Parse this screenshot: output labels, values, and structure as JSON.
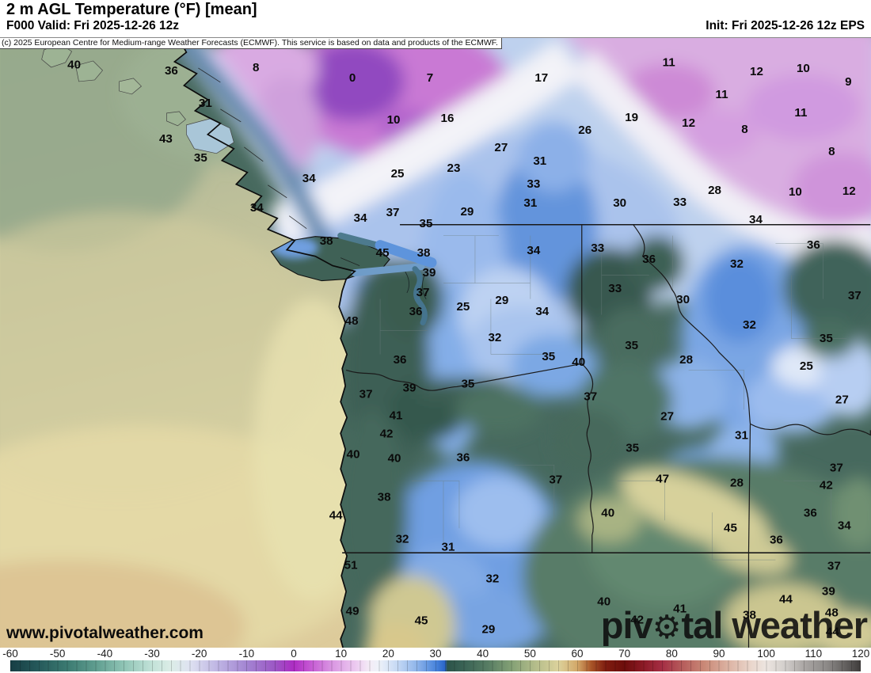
{
  "header": {
    "title": "2 m AGL Temperature (°F) [mean]",
    "valid": "F000 Valid: Fri 2025-12-26 12z",
    "init": "Init: Fri 2025-12-26 12z EPS"
  },
  "copyright": "(c) 2025 European Centre for Medium-range Weather Forecasts (ECMWF). This service is based on data and products of the ECMWF.",
  "watermark": "www.pivotalweather.com",
  "logo": {
    "pre": "piv",
    "gear_icon": "⚙",
    "post": "tal weather"
  },
  "colorbar": {
    "unit": "°F",
    "min": -60,
    "max": 120,
    "ticks": [
      -60,
      -50,
      -40,
      -30,
      -20,
      -10,
      0,
      10,
      20,
      30,
      40,
      50,
      60,
      70,
      80,
      90,
      100,
      110,
      120
    ],
    "stops": [
      {
        "v": -60,
        "c": "#173e44"
      },
      {
        "v": -54,
        "c": "#265a5b"
      },
      {
        "v": -48,
        "c": "#3b7a71"
      },
      {
        "v": -42,
        "c": "#5f9d8f"
      },
      {
        "v": -36,
        "c": "#8fc4b5"
      },
      {
        "v": -30,
        "c": "#c2e2d8"
      },
      {
        "v": -26,
        "c": "#dcede7"
      },
      {
        "v": -22,
        "c": "#dee2f1"
      },
      {
        "v": -16,
        "c": "#beb4e3"
      },
      {
        "v": -10,
        "c": "#a385d2"
      },
      {
        "v": -4,
        "c": "#9c57c5"
      },
      {
        "v": 0,
        "c": "#ad2cc3"
      },
      {
        "v": 3,
        "c": "#c252d1"
      },
      {
        "v": 8,
        "c": "#d995e2"
      },
      {
        "v": 13,
        "c": "#ecc9f0"
      },
      {
        "v": 16,
        "c": "#f4ecf6"
      },
      {
        "v": 18,
        "c": "#eef2f9"
      },
      {
        "v": 22,
        "c": "#c4d8f4"
      },
      {
        "v": 26,
        "c": "#8fb5ea"
      },
      {
        "v": 30,
        "c": "#4a85dc"
      },
      {
        "v": 32,
        "c": "#2a65c8"
      },
      {
        "v": 32.5,
        "c": "#2d544a"
      },
      {
        "v": 36,
        "c": "#3a6355"
      },
      {
        "v": 41,
        "c": "#567c63"
      },
      {
        "v": 46,
        "c": "#83a075"
      },
      {
        "v": 51,
        "c": "#b3bc8a"
      },
      {
        "v": 56,
        "c": "#dcd29c"
      },
      {
        "v": 60,
        "c": "#d3a869"
      },
      {
        "v": 63,
        "c": "#a85427"
      },
      {
        "v": 66,
        "c": "#7f1d10"
      },
      {
        "v": 70,
        "c": "#6d0d0b"
      },
      {
        "v": 74,
        "c": "#8c1a26"
      },
      {
        "v": 78,
        "c": "#a52e44"
      },
      {
        "v": 82,
        "c": "#b55a5a"
      },
      {
        "v": 87,
        "c": "#ca8a78"
      },
      {
        "v": 92,
        "c": "#dcb3a3"
      },
      {
        "v": 97,
        "c": "#ead7cd"
      },
      {
        "v": 100,
        "c": "#ece5e0"
      },
      {
        "v": 104,
        "c": "#d2cecb"
      },
      {
        "v": 108,
        "c": "#aaa6a4"
      },
      {
        "v": 113,
        "c": "#8b8886"
      },
      {
        "v": 118,
        "c": "#565352"
      },
      {
        "v": 120,
        "c": "#3e3b3a"
      }
    ]
  },
  "map": {
    "temperature_labels": [
      [
        40,
        93,
        80
      ],
      [
        36,
        216,
        88
      ],
      [
        8,
        323,
        84
      ],
      [
        31,
        259,
        129
      ],
      [
        43,
        209,
        174
      ],
      [
        35,
        253,
        198
      ],
      [
        34,
        324,
        261
      ],
      [
        0,
        445,
        97
      ],
      [
        7,
        543,
        97
      ],
      [
        17,
        684,
        97
      ],
      [
        10,
        497,
        150
      ],
      [
        16,
        565,
        148
      ],
      [
        26,
        739,
        163
      ],
      [
        27,
        633,
        185
      ],
      [
        31,
        682,
        202
      ],
      [
        33,
        674,
        231
      ],
      [
        31,
        670,
        255
      ],
      [
        34,
        390,
        224
      ],
      [
        25,
        502,
        218
      ],
      [
        23,
        573,
        211
      ],
      [
        29,
        590,
        266
      ],
      [
        34,
        455,
        274
      ],
      [
        37,
        496,
        267
      ],
      [
        35,
        538,
        281
      ],
      [
        11,
        845,
        77
      ],
      [
        12,
        956,
        89
      ],
      [
        10,
        1015,
        85
      ],
      [
        9,
        1072,
        102
      ],
      [
        11,
        912,
        118
      ],
      [
        11,
        1012,
        141
      ],
      [
        19,
        798,
        147
      ],
      [
        12,
        870,
        154
      ],
      [
        8,
        941,
        162
      ],
      [
        8,
        1051,
        190
      ],
      [
        28,
        903,
        239
      ],
      [
        30,
        783,
        255
      ],
      [
        33,
        859,
        254
      ],
      [
        10,
        1005,
        241
      ],
      [
        12,
        1073,
        240
      ],
      [
        34,
        955,
        276
      ],
      [
        38,
        412,
        303
      ],
      [
        45,
        483,
        318
      ],
      [
        38,
        535,
        318
      ],
      [
        34,
        674,
        315
      ],
      [
        39,
        542,
        343
      ],
      [
        37,
        534,
        368
      ],
      [
        29,
        634,
        378
      ],
      [
        25,
        585,
        386
      ],
      [
        36,
        525,
        392
      ],
      [
        34,
        685,
        392
      ],
      [
        48,
        444,
        404
      ],
      [
        32,
        625,
        425
      ],
      [
        35,
        693,
        449
      ],
      [
        36,
        505,
        453
      ],
      [
        39,
        517,
        489
      ],
      [
        35,
        591,
        484
      ],
      [
        37,
        462,
        497
      ],
      [
        41,
        500,
        524
      ],
      [
        33,
        755,
        312
      ],
      [
        36,
        820,
        326
      ],
      [
        32,
        931,
        332
      ],
      [
        36,
        1028,
        308
      ],
      [
        33,
        777,
        363
      ],
      [
        37,
        1080,
        372
      ],
      [
        30,
        863,
        377
      ],
      [
        32,
        947,
        409
      ],
      [
        35,
        1044,
        426
      ],
      [
        35,
        798,
        435
      ],
      [
        28,
        867,
        453
      ],
      [
        25,
        1019,
        461
      ],
      [
        40,
        731,
        456
      ],
      [
        37,
        746,
        500
      ],
      [
        27,
        1064,
        504
      ],
      [
        27,
        843,
        525
      ],
      [
        42,
        488,
        547
      ],
      [
        40,
        446,
        573
      ],
      [
        40,
        498,
        578
      ],
      [
        36,
        585,
        577
      ],
      [
        37,
        702,
        605
      ],
      [
        38,
        485,
        627
      ],
      [
        44,
        424,
        650
      ],
      [
        32,
        508,
        680
      ],
      [
        31,
        566,
        690
      ],
      [
        51,
        443,
        713
      ],
      [
        32,
        622,
        730
      ],
      [
        49,
        445,
        771
      ],
      [
        45,
        532,
        783
      ],
      [
        29,
        617,
        794
      ],
      [
        31,
        937,
        549
      ],
      [
        35,
        799,
        565
      ],
      [
        37,
        1057,
        590
      ],
      [
        47,
        837,
        604
      ],
      [
        42,
        1044,
        612
      ],
      [
        28,
        931,
        609
      ],
      [
        40,
        768,
        647
      ],
      [
        36,
        1024,
        647
      ],
      [
        34,
        1067,
        663
      ],
      [
        45,
        923,
        666
      ],
      [
        36,
        981,
        681
      ],
      [
        37,
        1054,
        714
      ],
      [
        39,
        1047,
        746
      ],
      [
        44,
        993,
        756
      ],
      [
        40,
        763,
        759
      ],
      [
        41,
        859,
        768
      ],
      [
        42,
        805,
        782
      ],
      [
        48,
        1051,
        773
      ],
      [
        38,
        947,
        776
      ],
      [
        44,
        1052,
        797
      ]
    ]
  }
}
